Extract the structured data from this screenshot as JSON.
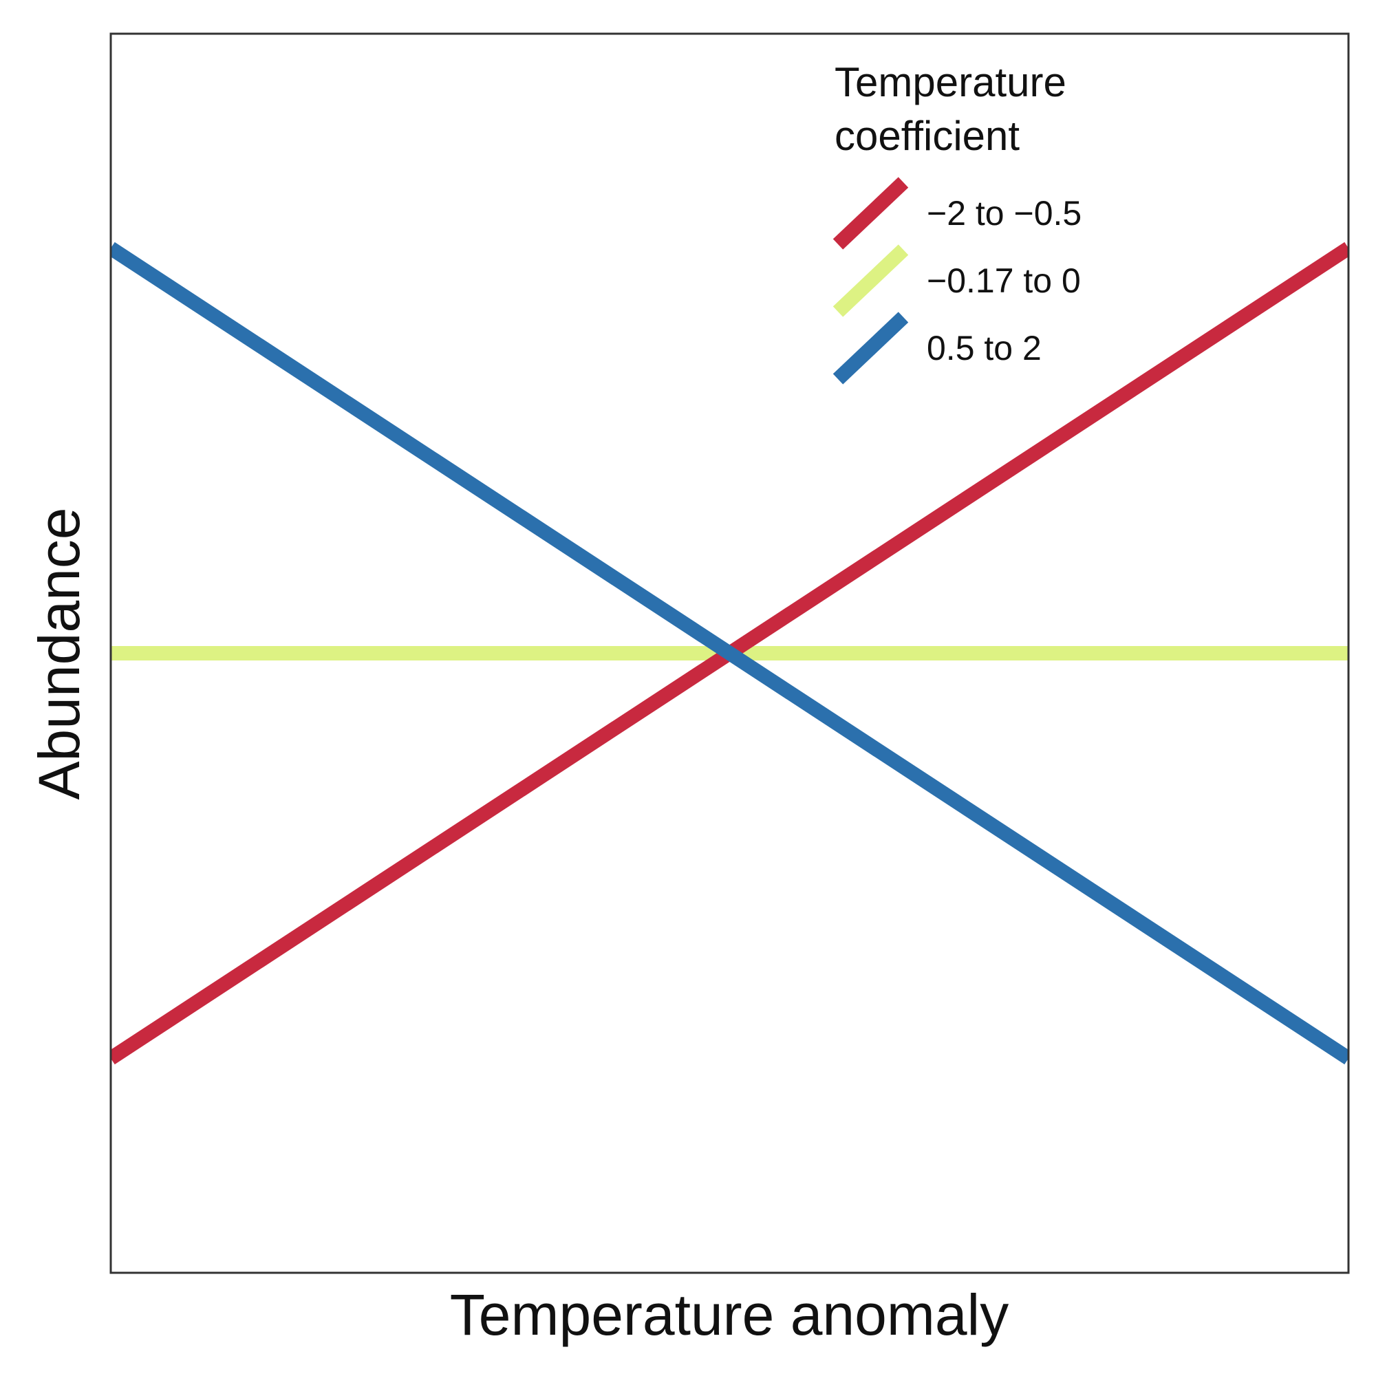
{
  "chart_data": {
    "type": "line",
    "title": "",
    "xlabel": "Temperature anomaly",
    "ylabel": "Abundance",
    "xlim": [
      -1,
      1
    ],
    "ylim": [
      -1.3,
      1.3
    ],
    "x_ticks_shown": false,
    "y_ticks_shown": false,
    "grid": false,
    "legend": {
      "title": "Temperature coefficient",
      "title_lines": [
        "Temperature",
        "coefficient"
      ],
      "placement": "top-right"
    },
    "series": [
      {
        "name": "−2 to −0.5",
        "color": "#c8293f",
        "x": [
          -1,
          1
        ],
        "y": [
          -0.85,
          0.85
        ]
      },
      {
        "name": "−0.17 to 0",
        "color": "#ddf283",
        "x": [
          -1,
          1
        ],
        "y": [
          0,
          0
        ]
      },
      {
        "name": "0.5 to 2",
        "color": "#2b70ad",
        "x": [
          -1,
          1
        ],
        "y": [
          0.85,
          -0.85
        ]
      }
    ]
  }
}
